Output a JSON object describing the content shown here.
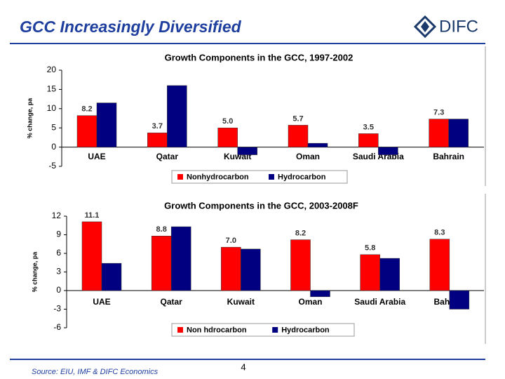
{
  "slide": {
    "title": "GCC Increasingly Diversified",
    "logo": "DIFC",
    "source": "Source: EIU, IMF & DIFC Economics",
    "page": "4"
  },
  "chart_data": [
    {
      "type": "bar",
      "title": "Growth Components in the GCC, 1997-2002",
      "y_label": "% change, pa",
      "categories": [
        "UAE",
        "Qatar",
        "Kuwait",
        "Oman",
        "Saudi Arabia",
        "Bahrain"
      ],
      "series": [
        {
          "name": "Nonhydrocarbon",
          "color": "#ff0000",
          "values": [
            8.2,
            3.7,
            5.0,
            5.7,
            3.5,
            7.3
          ],
          "value_labels": [
            "8.2",
            "3.7",
            "5.0",
            "5.7",
            "3.5",
            "7.3"
          ]
        },
        {
          "name": "Hydrocarbon",
          "color": "#000080",
          "values": [
            11.5,
            16,
            -2,
            1,
            -2,
            7.3
          ]
        }
      ],
      "ylim": [
        -5,
        20
      ],
      "yticks": [
        -5,
        0,
        5,
        10,
        15,
        20
      ],
      "legend": "bottom"
    },
    {
      "type": "bar",
      "title": "Growth Components in the GCC, 2003-2008F",
      "y_label": "% change, pa",
      "categories": [
        "UAE",
        "Qatar",
        "Kuwait",
        "Oman",
        "Saudi Arabia",
        "Bahrain"
      ],
      "series": [
        {
          "name": "Non hdrocarbon",
          "color": "#ff0000",
          "values": [
            11.1,
            8.8,
            7.0,
            8.2,
            5.8,
            8.3
          ],
          "value_labels": [
            "11.1",
            "8.8",
            "7.0",
            "8.2",
            "5.8",
            "8.3"
          ]
        },
        {
          "name": "Hydrocarbon",
          "color": "#000080",
          "values": [
            4.4,
            10.3,
            6.7,
            -1,
            5.2,
            -3
          ]
        }
      ],
      "ylim": [
        -6,
        12
      ],
      "yticks": [
        -6,
        -3,
        0,
        3,
        6,
        9,
        12
      ],
      "legend": "bottom"
    }
  ]
}
